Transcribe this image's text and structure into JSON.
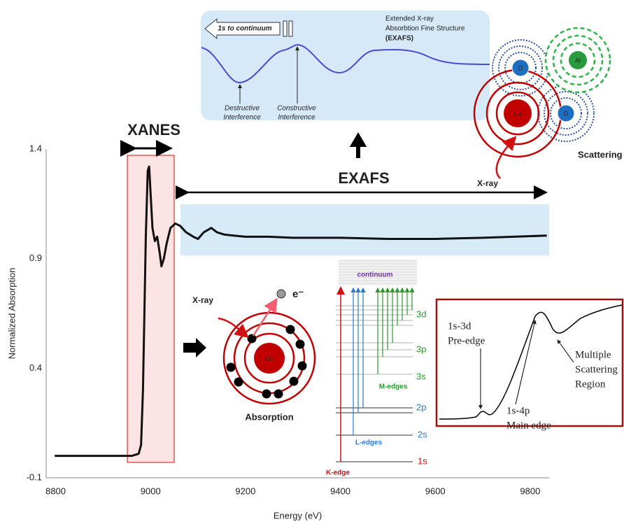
{
  "chart_data": {
    "type": "line",
    "x": [
      8798,
      8900,
      8960,
      8975,
      8980,
      8984,
      8987,
      8990,
      8994,
      8997,
      9000,
      9004,
      9009,
      9014,
      9019,
      9023,
      9028,
      9034,
      9042,
      9052,
      9062,
      9075,
      9090,
      9100,
      9112,
      9128,
      9140,
      9155,
      9175,
      9200,
      9250,
      9300,
      9400,
      9500,
      9600,
      9700,
      9835
    ],
    "values": [
      0.0,
      0.0,
      0.0,
      0.01,
      0.05,
      0.3,
      0.65,
      1.0,
      1.3,
      1.32,
      1.2,
      1.04,
      0.98,
      1.0,
      0.93,
      0.865,
      0.9,
      0.97,
      1.04,
      1.06,
      1.05,
      1.02,
      1.0,
      0.99,
      1.02,
      1.04,
      1.02,
      1.01,
      1.005,
      1.0,
      1.0,
      0.995,
      0.995,
      0.99,
      0.99,
      0.995,
      1.005
    ],
    "color": "#111111",
    "xlabel": "Energy (eV)",
    "ylabel": "Normalized Absorption",
    "xlim": [
      8780,
      9840
    ],
    "ylim": [
      -0.1,
      1.4
    ],
    "xticks": [
      8800,
      9000,
      9200,
      9400,
      9600,
      9800
    ],
    "yticks": [
      -0.1,
      0.4,
      0.9,
      1.4
    ],
    "grid": false,
    "annotations": {
      "xanes": "XANES",
      "exafs": "EXAFS"
    }
  },
  "exafs_inset": {
    "arrow_label": "1s to continuum",
    "caption": [
      "Extended X-ray",
      "Absorbtion Fine Structure",
      "(EXAFS)"
    ],
    "destructive": [
      "Destructive",
      "Interference"
    ],
    "constructive": [
      "Constructive",
      "Interference"
    ]
  },
  "scattering": {
    "atoms": [
      "O",
      "Al",
      "Cu",
      "O"
    ],
    "label": "Scattering",
    "xray": "X-ray"
  },
  "absorption": {
    "xray": "X-ray",
    "electron": "e⁻",
    "atom": "Cu",
    "label": "Absorption"
  },
  "energy_levels": {
    "continuum": "continuum",
    "levels": [
      "3d",
      "3p",
      "3s",
      "2p",
      "2s",
      "1s"
    ],
    "m_edges": "M-edges",
    "l_edges": "L-edges",
    "k_edge": "K-edge"
  },
  "xanes_inset": {
    "pre_edge": [
      "1s-3d",
      "Pre-edge"
    ],
    "main_edge": [
      "1s-4p",
      "Main edge"
    ],
    "multiple": [
      "Multiple",
      "Scattering",
      "Region"
    ]
  }
}
